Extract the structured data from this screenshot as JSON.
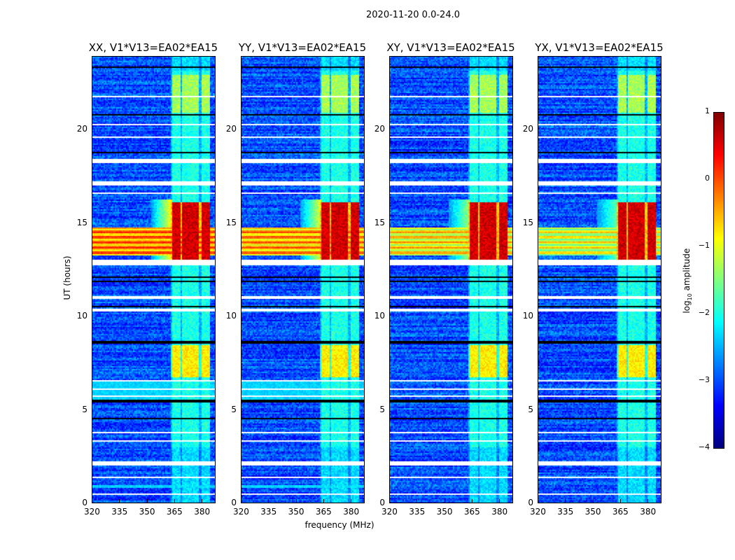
{
  "chart_data": {
    "type": "heatmap",
    "title": "2020-11-20 0.0-24.0",
    "xlabel": "frequency (MHz)",
    "ylabel": "UT (hours)",
    "xlim": [
      320,
      387.6
    ],
    "ylim": [
      0,
      24
    ],
    "xticks": [
      "320",
      "335",
      "350",
      "365",
      "380"
    ],
    "xtick_values": [
      320,
      335,
      350,
      365,
      380
    ],
    "yticks": [
      "0",
      "5",
      "10",
      "15",
      "20"
    ],
    "ytick_values": [
      0,
      5,
      10,
      15,
      20
    ],
    "panels": [
      {
        "title": "XX, V1*V13=EA02*EA15",
        "broadband_strength": 1.0
      },
      {
        "title": "YY, V1*V13=EA02*EA15",
        "broadband_strength": 0.9
      },
      {
        "title": "XY, V1*V13=EA02*EA15",
        "broadband_strength": 0.7
      },
      {
        "title": "YX, V1*V13=EA02*EA15",
        "broadband_strength": 0.55
      }
    ],
    "colorbar": {
      "label_prefix": "log",
      "label_sub": "10",
      "label_suffix": " amplitude",
      "range": [
        -4,
        1
      ],
      "ticks": [
        "1",
        "0",
        "−1",
        "−2",
        "−3",
        "−4"
      ],
      "tick_values": [
        1,
        0,
        -1,
        -2,
        -3,
        -4
      ],
      "colormap": "jet"
    },
    "background_log_amplitude": -3.0,
    "rfi_channels_mhz": [
      [
        362.8,
        367.8
      ],
      [
        368.1,
        372.7
      ],
      [
        373.4,
        378.0
      ],
      [
        378.8,
        383.4
      ]
    ],
    "rfi_levels": [
      {
        "hours": [
          13.1,
          16.2
        ],
        "log_amplitude": 0.6
      },
      {
        "hours": [
          6.8,
          8.5
        ],
        "log_amplitude": -0.8
      },
      {
        "hours": [
          21.0,
          23.0
        ],
        "log_amplitude": -1.3
      }
    ],
    "rfi_default_log_amplitude": -2.0,
    "broadband_hours": [
      13.3,
      14.8
    ],
    "broadband_log_amplitude": 0.3,
    "flagged_hours_white": [
      [
        0.45,
        0.52
      ],
      [
        1.4,
        1.47
      ],
      [
        2.05,
        2.25
      ],
      [
        2.4,
        2.45
      ],
      [
        3.35,
        3.42
      ],
      [
        3.75,
        3.82
      ],
      [
        5.25,
        5.3
      ],
      [
        5.75,
        5.8
      ],
      [
        6.1,
        6.15
      ],
      [
        6.55,
        6.62
      ],
      [
        10.3,
        10.45
      ],
      [
        11.0,
        11.1
      ],
      [
        12.8,
        13.05
      ],
      [
        15.6,
        15.66
      ],
      [
        16.6,
        16.66
      ],
      [
        17.1,
        17.3
      ],
      [
        18.3,
        18.5
      ],
      [
        19.6,
        19.66
      ],
      [
        20.3,
        20.36
      ],
      [
        21.8,
        21.86
      ],
      [
        22.9,
        22.95
      ]
    ],
    "flagged_hours_black": [
      [
        4.55,
        4.62
      ],
      [
        5.45,
        5.55
      ],
      [
        8.6,
        8.72
      ],
      [
        10.5,
        10.6
      ],
      [
        11.9,
        11.95
      ],
      [
        12.1,
        12.15
      ],
      [
        12.3,
        12.35
      ],
      [
        18.8,
        18.9
      ],
      [
        20.8,
        20.86
      ],
      [
        22.15,
        22.2
      ],
      [
        23.4,
        23.45
      ]
    ]
  }
}
